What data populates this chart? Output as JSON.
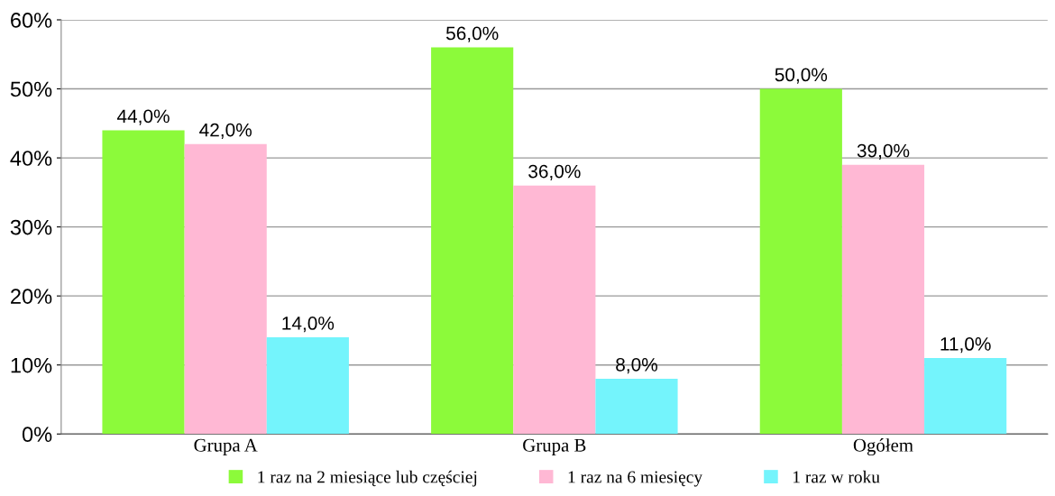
{
  "chart_data": {
    "type": "bar",
    "categories": [
      "Grupa A",
      "Grupa B",
      "Ogółem"
    ],
    "series": [
      {
        "name": "1 raz na 2 miesiące lub częściej",
        "color": "#8cfa3a",
        "values": [
          44,
          56,
          50
        ],
        "value_labels": [
          "44,0%",
          "56,0%",
          "50,0%"
        ]
      },
      {
        "name": "1 raz na 6 miesięcy",
        "color": "#ffb8d4",
        "values": [
          42,
          36,
          39
        ],
        "value_labels": [
          "42,0%",
          "36,0%",
          "39,0%"
        ]
      },
      {
        "name": "1 raz w roku",
        "color": "#74f4fc",
        "values": [
          14,
          8,
          11
        ],
        "value_labels": [
          "14,0%",
          "8,0%",
          "11,0%"
        ]
      }
    ],
    "ylim": [
      0,
      60
    ],
    "yticks": [
      {
        "value": 0,
        "label": "0%"
      },
      {
        "value": 10,
        "label": "10%"
      },
      {
        "value": 20,
        "label": "20%"
      },
      {
        "value": 30,
        "label": "30%"
      },
      {
        "value": 40,
        "label": "40%"
      },
      {
        "value": 50,
        "label": "50%"
      },
      {
        "value": 60,
        "label": "60%"
      }
    ],
    "grid": "y",
    "legend": "bottom"
  }
}
